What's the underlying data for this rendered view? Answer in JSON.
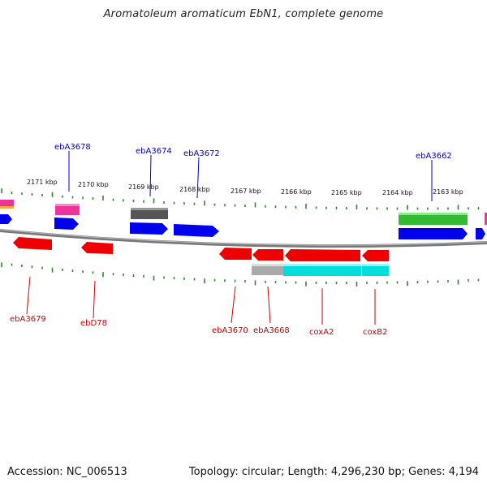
{
  "title": "Aromatoleum aromaticum EbN1, complete genome",
  "footer": {
    "accession": "Accession: NC_006513",
    "summary": "Topology: circular; Length: 4,296,230 bp; Genes: 4,194"
  },
  "colors": {
    "top_label": "#0000cc",
    "bottom_label": "#cc0000",
    "tick": "#2a8a2a",
    "backbone": "#777777"
  },
  "kbp_labels": [
    "2171 kbp",
    "2170 kbp",
    "2169 kbp",
    "2168 kbp",
    "2167 kbp",
    "2166 kbp",
    "2165 kbp",
    "2164 kbp",
    "2163 kbp"
  ],
  "gene_labels_top": [
    "ebA3678",
    "ebA3674",
    "ebA3672",
    "ebA3662"
  ],
  "gene_labels_bottom": [
    "ebA3679",
    "ebD78",
    "ebA3670",
    "ebA3668",
    "coxA2",
    "coxB2"
  ]
}
